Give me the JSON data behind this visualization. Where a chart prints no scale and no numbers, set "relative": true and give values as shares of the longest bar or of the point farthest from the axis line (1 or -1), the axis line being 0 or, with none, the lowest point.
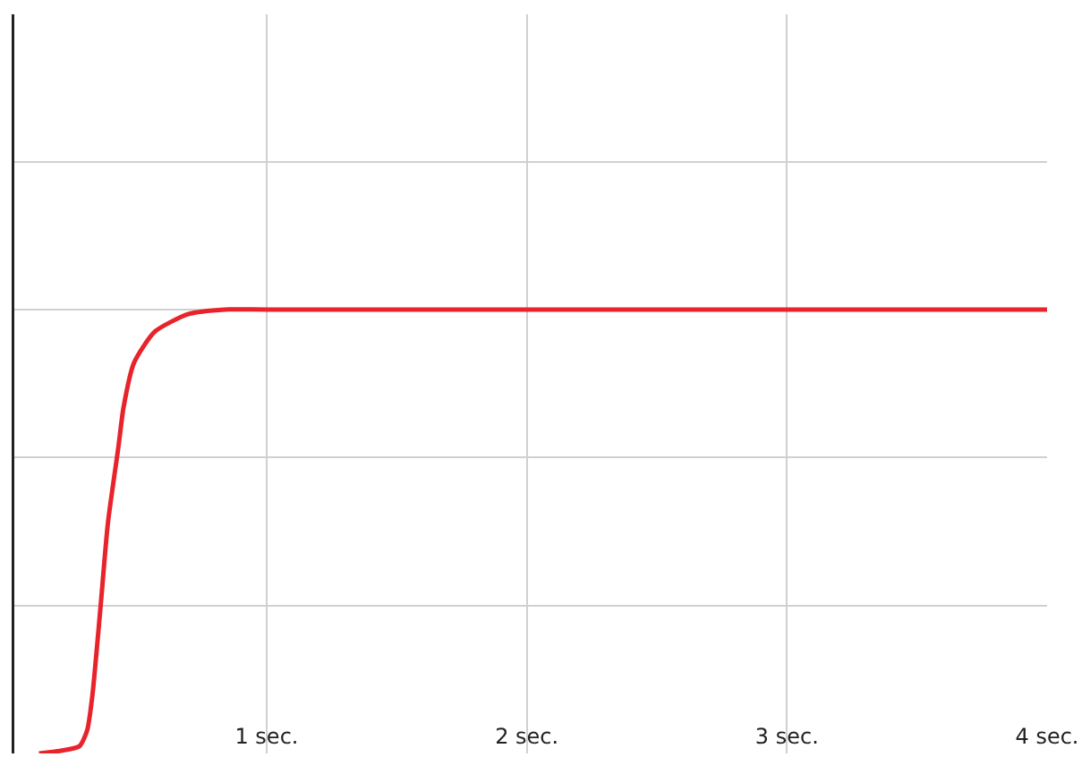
{
  "chart_data": {
    "type": "line",
    "relative": true,
    "x": [
      0.125,
      0.21,
      0.28,
      0.31,
      0.33,
      0.36,
      0.39,
      0.43,
      0.45,
      0.49,
      0.57,
      0.7,
      0.84,
      1.0,
      4.0
    ],
    "series": [
      {
        "color": "#e8232b",
        "values": [
          0,
          0.006,
          0.016,
          0.052,
          0.13,
          0.32,
          0.52,
          0.69,
          0.78,
          0.88,
          0.95,
          0.99,
          1,
          1,
          1
        ]
      }
    ],
    "xlim": [
      0.03,
      4.0
    ],
    "xticks": [
      {
        "value": 1,
        "label": "1 sec."
      },
      {
        "value": 2,
        "label": "2 sec."
      },
      {
        "value": 3,
        "label": "3 sec."
      },
      {
        "value": 4,
        "label": "4 sec."
      }
    ],
    "grid": true,
    "marker": "none",
    "line_style": "solid"
  }
}
